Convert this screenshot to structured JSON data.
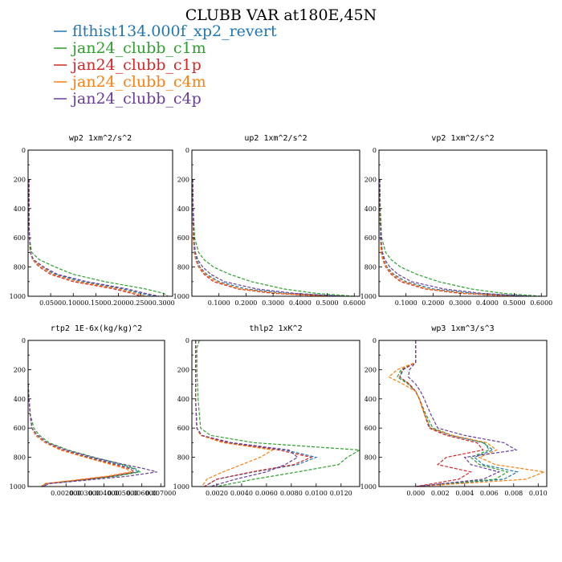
{
  "figure": {
    "title": "CLUBB VAR at180E,45N",
    "legend": [
      {
        "label": "flthist134.000f_xp2_revert",
        "color": "#1f77b4"
      },
      {
        "label": "jan24_clubb_c1m",
        "color": "#2ca02c"
      },
      {
        "label": "jan24_clubb_c1p",
        "color": "#d62728"
      },
      {
        "label": "jan24_clubb_c4m",
        "color": "#ff7f0e"
      },
      {
        "label": "jan24_clubb_c4p",
        "color": "#6a3d9a"
      }
    ]
  },
  "chart_data": [
    {
      "type": "line",
      "title": "wp2  1xm^2/s^2",
      "ylim": [
        1000,
        0
      ],
      "yticks": [
        "0",
        "200",
        "400",
        "600",
        "800",
        "1000"
      ],
      "xlim": [
        0,
        0.32
      ],
      "xticks": [
        {
          "v": 0.05,
          "label": "0.0500"
        },
        {
          "v": 0.1,
          "label": "0.1000"
        },
        {
          "v": 0.15,
          "label": "0.1500"
        },
        {
          "v": 0.2,
          "label": "0.2000"
        },
        {
          "v": 0.25,
          "label": "0.2500"
        },
        {
          "v": 0.3,
          "label": "0.3000"
        }
      ],
      "y": [
        200,
        250,
        300,
        400,
        500,
        600,
        700,
        750,
        800,
        850,
        900,
        950,
        980,
        1000
      ],
      "series": [
        {
          "name": "flthist134.000f_xp2_revert",
          "values": [
            0.002,
            0.002,
            0.002,
            0.002,
            0.002,
            0.003,
            0.005,
            0.01,
            0.03,
            0.06,
            0.12,
            0.21,
            0.25,
            0.28
          ]
        },
        {
          "name": "jan24_clubb_c1m",
          "values": [
            0.002,
            0.002,
            0.002,
            0.002,
            0.002,
            0.003,
            0.008,
            0.025,
            0.06,
            0.1,
            0.17,
            0.26,
            0.3,
            0.31
          ]
        },
        {
          "name": "jan24_clubb_c1p",
          "values": [
            0.002,
            0.002,
            0.002,
            0.002,
            0.002,
            0.003,
            0.005,
            0.01,
            0.025,
            0.05,
            0.1,
            0.19,
            0.23,
            0.25
          ]
        },
        {
          "name": "jan24_clubb_c4m",
          "values": [
            0.002,
            0.002,
            0.002,
            0.002,
            0.002,
            0.003,
            0.005,
            0.01,
            0.03,
            0.055,
            0.11,
            0.2,
            0.24,
            0.26
          ]
        },
        {
          "name": "jan24_clubb_c4p",
          "values": [
            0.002,
            0.002,
            0.002,
            0.002,
            0.002,
            0.003,
            0.005,
            0.012,
            0.035,
            0.065,
            0.13,
            0.22,
            0.26,
            0.29
          ]
        }
      ]
    },
    {
      "type": "line",
      "title": "up2  1xm^2/s^2",
      "ylim": [
        1000,
        0
      ],
      "yticks": [
        "0",
        "200",
        "400",
        "600",
        "800",
        "1000"
      ],
      "xlim": [
        0,
        0.62
      ],
      "xticks": [
        {
          "v": 0.1,
          "label": "0.1000"
        },
        {
          "v": 0.2,
          "label": "0.2000"
        },
        {
          "v": 0.3,
          "label": "0.3000"
        },
        {
          "v": 0.4,
          "label": "0.4000"
        },
        {
          "v": 0.5,
          "label": "0.5000"
        },
        {
          "v": 0.6,
          "label": "0.6000"
        }
      ],
      "y": [
        200,
        400,
        600,
        700,
        750,
        800,
        850,
        900,
        950,
        980,
        1000
      ],
      "series": [
        {
          "name": "flthist134.000f_xp2_revert",
          "values": [
            0.003,
            0.004,
            0.006,
            0.01,
            0.018,
            0.03,
            0.055,
            0.1,
            0.2,
            0.35,
            0.55
          ]
        },
        {
          "name": "jan24_clubb_c1m",
          "values": [
            0.003,
            0.005,
            0.01,
            0.025,
            0.045,
            0.08,
            0.14,
            0.22,
            0.34,
            0.46,
            0.6
          ]
        },
        {
          "name": "jan24_clubb_c1p",
          "values": [
            0.003,
            0.004,
            0.005,
            0.008,
            0.014,
            0.025,
            0.045,
            0.08,
            0.17,
            0.3,
            0.5
          ]
        },
        {
          "name": "jan24_clubb_c4m",
          "values": [
            0.003,
            0.004,
            0.005,
            0.008,
            0.015,
            0.027,
            0.05,
            0.09,
            0.18,
            0.32,
            0.52
          ]
        },
        {
          "name": "jan24_clubb_c4p",
          "values": [
            0.003,
            0.004,
            0.007,
            0.013,
            0.022,
            0.04,
            0.07,
            0.12,
            0.24,
            0.38,
            0.56
          ]
        }
      ]
    },
    {
      "type": "line",
      "title": "vp2  1xm^2/s^2",
      "ylim": [
        1000,
        0
      ],
      "yticks": [
        "0",
        "200",
        "400",
        "600",
        "800",
        "1000"
      ],
      "xlim": [
        0,
        0.62
      ],
      "xticks": [
        {
          "v": 0.1,
          "label": "0.1000"
        },
        {
          "v": 0.2,
          "label": "0.2000"
        },
        {
          "v": 0.3,
          "label": "0.3000"
        },
        {
          "v": 0.4,
          "label": "0.4000"
        },
        {
          "v": 0.5,
          "label": "0.5000"
        },
        {
          "v": 0.6,
          "label": "0.6000"
        }
      ],
      "y": [
        200,
        400,
        600,
        700,
        750,
        800,
        850,
        900,
        950,
        980,
        1000
      ],
      "series": [
        {
          "name": "flthist134.000f_xp2_revert",
          "values": [
            0.003,
            0.004,
            0.006,
            0.01,
            0.018,
            0.03,
            0.055,
            0.1,
            0.2,
            0.35,
            0.55
          ]
        },
        {
          "name": "jan24_clubb_c1m",
          "values": [
            0.003,
            0.005,
            0.01,
            0.025,
            0.045,
            0.08,
            0.14,
            0.22,
            0.34,
            0.46,
            0.6
          ]
        },
        {
          "name": "jan24_clubb_c1p",
          "values": [
            0.003,
            0.004,
            0.005,
            0.008,
            0.014,
            0.025,
            0.045,
            0.08,
            0.17,
            0.3,
            0.5
          ]
        },
        {
          "name": "jan24_clubb_c4m",
          "values": [
            0.003,
            0.004,
            0.005,
            0.008,
            0.015,
            0.027,
            0.05,
            0.09,
            0.18,
            0.32,
            0.52
          ]
        },
        {
          "name": "jan24_clubb_c4p",
          "values": [
            0.003,
            0.004,
            0.007,
            0.013,
            0.022,
            0.04,
            0.07,
            0.12,
            0.24,
            0.38,
            0.56
          ]
        }
      ]
    },
    {
      "type": "line",
      "title": "rtp2  1E-6x(kg/kg)^2",
      "ylim": [
        1000,
        0
      ],
      "yticks": [
        "0",
        "200",
        "400",
        "600",
        "800",
        "1000"
      ],
      "xlim": [
        0,
        0.0072
      ],
      "xticks": [
        {
          "v": 0.002,
          "label": "0.002000"
        },
        {
          "v": 0.003,
          "label": "0.003000"
        },
        {
          "v": 0.004,
          "label": "0.004000"
        },
        {
          "v": 0.005,
          "label": "0.005000"
        },
        {
          "v": 0.006,
          "label": "0.006000"
        },
        {
          "v": 0.007,
          "label": "0.007000"
        }
      ],
      "y": [
        300,
        500,
        600,
        650,
        700,
        750,
        800,
        850,
        880,
        900,
        930,
        960,
        980,
        1000
      ],
      "series": [
        {
          "name": "flthist134.000f_xp2_revert",
          "values": [
            0.0,
            0.0001,
            0.0002,
            0.0004,
            0.0009,
            0.0018,
            0.0032,
            0.0048,
            0.0056,
            0.0058,
            0.0045,
            0.0025,
            0.001,
            0.0008
          ]
        },
        {
          "name": "jan24_clubb_c1m",
          "values": [
            0.0,
            0.0001,
            0.0003,
            0.0006,
            0.0011,
            0.0021,
            0.0035,
            0.005,
            0.0057,
            0.0059,
            0.0046,
            0.0025,
            0.0009,
            0.0007
          ]
        },
        {
          "name": "jan24_clubb_c1p",
          "values": [
            0.0,
            0.0001,
            0.0002,
            0.0004,
            0.0009,
            0.0018,
            0.0031,
            0.0046,
            0.0054,
            0.0056,
            0.0043,
            0.0024,
            0.0009,
            0.0007
          ]
        },
        {
          "name": "jan24_clubb_c4m",
          "values": [
            0.0,
            0.0001,
            0.0002,
            0.0004,
            0.0009,
            0.0017,
            0.003,
            0.0044,
            0.0052,
            0.0054,
            0.0041,
            0.0022,
            0.0009,
            0.0007
          ]
        },
        {
          "name": "jan24_clubb_c4p",
          "values": [
            0.0,
            0.0001,
            0.0002,
            0.0005,
            0.001,
            0.002,
            0.0034,
            0.0051,
            0.0062,
            0.0068,
            0.0052,
            0.0028,
            0.0011,
            0.0008
          ]
        }
      ]
    },
    {
      "type": "line",
      "title": "thlp2  1xK^2",
      "ylim": [
        1000,
        0
      ],
      "yticks": [
        "0",
        "200",
        "400",
        "600",
        "800",
        "1000"
      ],
      "xlim": [
        0,
        0.0135
      ],
      "xticks": [
        {
          "v": 0.002,
          "label": "0.0020"
        },
        {
          "v": 0.004,
          "label": "0.0040"
        },
        {
          "v": 0.006,
          "label": "0.0060"
        },
        {
          "v": 0.008,
          "label": "0.0080"
        },
        {
          "v": 0.01,
          "label": "0.0100"
        },
        {
          "v": 0.012,
          "label": "0.0120"
        }
      ],
      "y": [
        0,
        50,
        200,
        400,
        600,
        650,
        700,
        750,
        800,
        850,
        900,
        950,
        1000
      ],
      "series": [
        {
          "name": "flthist134.000f_xp2_revert",
          "values": [
            0.0003,
            0.0003,
            0.0003,
            0.0003,
            0.0004,
            0.0008,
            0.003,
            0.0075,
            0.01,
            0.0085,
            0.005,
            0.002,
            0.001
          ]
        },
        {
          "name": "jan24_clubb_c1m",
          "values": [
            0.0006,
            0.0004,
            0.0004,
            0.0005,
            0.0007,
            0.0015,
            0.005,
            0.0135,
            0.0125,
            0.0118,
            0.0085,
            0.005,
            0.002
          ]
        },
        {
          "name": "jan24_clubb_c1p",
          "values": [
            0.0003,
            0.0003,
            0.0003,
            0.0003,
            0.0004,
            0.0007,
            0.0028,
            0.007,
            0.0096,
            0.0082,
            0.0048,
            0.002,
            0.001
          ]
        },
        {
          "name": "jan24_clubb_c4m",
          "values": [
            0.0003,
            0.0003,
            0.0003,
            0.0003,
            0.0004,
            0.0007,
            0.0025,
            0.0065,
            0.0055,
            0.004,
            0.0025,
            0.0012,
            0.0008
          ]
        },
        {
          "name": "jan24_clubb_c4p",
          "values": [
            0.0003,
            0.0003,
            0.0003,
            0.0003,
            0.0004,
            0.0008,
            0.0032,
            0.0078,
            0.0085,
            0.0075,
            0.006,
            0.0035,
            0.0015
          ]
        }
      ]
    },
    {
      "type": "line",
      "title": "wp3  1xm^3/s^3",
      "ylim": [
        1000,
        0
      ],
      "yticks": [
        "0",
        "200",
        "400",
        "600",
        "800",
        "1000"
      ],
      "xlim": [
        -0.003,
        0.0107
      ],
      "xticks": [
        {
          "v": 0.0,
          "label": "0.000"
        },
        {
          "v": 0.002,
          "label": "0.002"
        },
        {
          "v": 0.004,
          "label": "0.004"
        },
        {
          "v": 0.006,
          "label": "0.006"
        },
        {
          "v": 0.008,
          "label": "0.008"
        },
        {
          "v": 0.01,
          "label": "0.010"
        }
      ],
      "y": [
        0,
        150,
        200,
        250,
        300,
        350,
        400,
        500,
        600,
        650,
        700,
        750,
        800,
        850,
        900,
        950,
        1000
      ],
      "series": [
        {
          "name": "flthist134.000f_xp2_revert",
          "values": [
            0.0,
            0.0,
            -0.001,
            -0.0013,
            -0.0005,
            0.0,
            0.0003,
            0.0007,
            0.0012,
            0.0028,
            0.0055,
            0.0063,
            0.0048,
            0.0055,
            0.0083,
            0.0072,
            0.0
          ]
        },
        {
          "name": "jan24_clubb_c1m",
          "values": [
            0.0,
            0.0,
            -0.0012,
            -0.0015,
            -0.0006,
            0.0,
            0.0003,
            0.0008,
            0.0014,
            0.003,
            0.0056,
            0.006,
            0.0045,
            0.0052,
            0.0075,
            0.0065,
            0.0
          ]
        },
        {
          "name": "jan24_clubb_c1p",
          "values": [
            0.0,
            0.0,
            -0.0011,
            -0.0013,
            -0.0005,
            0.0,
            0.0003,
            0.0007,
            0.0011,
            0.0025,
            0.005,
            0.0055,
            0.0025,
            0.0018,
            0.0045,
            0.0035,
            0.0
          ]
        },
        {
          "name": "jan24_clubb_c4m",
          "values": [
            0.0,
            0.0,
            -0.0015,
            -0.0022,
            -0.001,
            0.0,
            0.0003,
            0.0007,
            0.0012,
            0.003,
            0.0058,
            0.0066,
            0.0052,
            0.0065,
            0.0105,
            0.009,
            0.0
          ]
        },
        {
          "name": "jan24_clubb_c4p",
          "values": [
            0.0,
            0.0,
            -0.0005,
            -0.0006,
            0.0,
            0.0004,
            0.0007,
            0.0012,
            0.0018,
            0.004,
            0.0072,
            0.0082,
            0.004,
            0.0045,
            0.0068,
            0.0055,
            0.0
          ]
        }
      ]
    }
  ]
}
